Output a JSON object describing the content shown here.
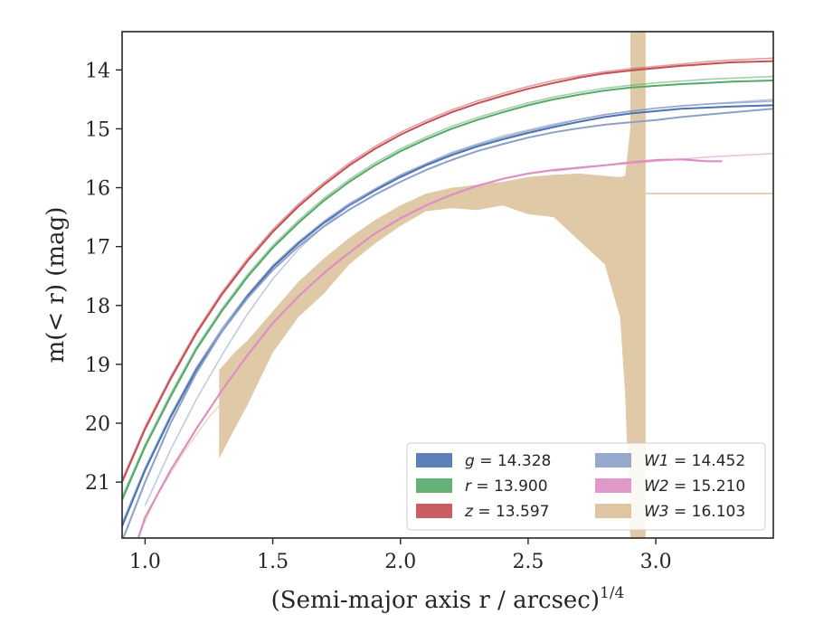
{
  "chart_data": {
    "type": "line",
    "xlabel": "(Semi-major axis r / arcsec)",
    "xlabel_sup": "1/4",
    "ylabel": "m(< r) (mag)",
    "xlim": [
      0.91,
      3.46
    ],
    "ylim": [
      21.95,
      13.35
    ],
    "y_inverted": true,
    "xticks": [
      1.0,
      1.5,
      2.0,
      2.5,
      3.0
    ],
    "xtick_labels": [
      "1.0",
      "1.5",
      "2.0",
      "2.5",
      "3.0"
    ],
    "yticks": [
      14,
      15,
      16,
      17,
      18,
      19,
      20,
      21
    ],
    "ytick_labels": [
      "14",
      "15",
      "16",
      "17",
      "18",
      "19",
      "20",
      "21"
    ],
    "grid": false,
    "legend_placement": "lower-right",
    "legend_columns": 2,
    "series": [
      {
        "name": "g",
        "legend_value": "14.328",
        "color": "#4c72b0",
        "x": [
          0.91,
          1.0,
          1.1,
          1.2,
          1.3,
          1.4,
          1.5,
          1.6,
          1.7,
          1.8,
          1.9,
          2.0,
          2.1,
          2.2,
          2.3,
          2.4,
          2.5,
          2.6,
          2.7,
          2.8,
          2.9,
          3.0,
          3.1,
          3.2,
          3.3,
          3.46
        ],
        "y": [
          21.75,
          20.8,
          19.9,
          19.1,
          18.45,
          17.85,
          17.35,
          16.95,
          16.6,
          16.3,
          16.05,
          15.82,
          15.62,
          15.45,
          15.3,
          15.18,
          15.07,
          14.97,
          14.88,
          14.8,
          14.74,
          14.7,
          14.66,
          14.64,
          14.62,
          14.6
        ],
        "alt_x": [
          0.91,
          1.0,
          1.1,
          1.2,
          1.3,
          1.4,
          1.5,
          1.6,
          1.7,
          1.8,
          1.9,
          2.0,
          2.1,
          2.2,
          2.3,
          2.4,
          2.5,
          2.6,
          2.7,
          2.8,
          2.9,
          3.0,
          3.1,
          3.2,
          3.3,
          3.46
        ],
        "alt_y": [
          21.7,
          20.76,
          19.86,
          19.06,
          18.4,
          17.82,
          17.32,
          16.92,
          16.57,
          16.27,
          16.02,
          15.79,
          15.6,
          15.42,
          15.27,
          15.15,
          15.04,
          14.94,
          14.84,
          14.76,
          14.7,
          14.65,
          14.61,
          14.58,
          14.56,
          14.53
        ]
      },
      {
        "name": "r",
        "legend_value": "13.900",
        "color": "#55a868",
        "x": [
          0.91,
          1.0,
          1.1,
          1.2,
          1.3,
          1.4,
          1.5,
          1.6,
          1.7,
          1.8,
          1.9,
          2.0,
          2.1,
          2.2,
          2.3,
          2.4,
          2.5,
          2.6,
          2.7,
          2.8,
          2.9,
          3.0,
          3.1,
          3.2,
          3.3,
          3.46
        ],
        "y": [
          21.3,
          20.4,
          19.55,
          18.75,
          18.1,
          17.52,
          17.02,
          16.6,
          16.22,
          15.9,
          15.62,
          15.38,
          15.18,
          15.0,
          14.85,
          14.72,
          14.6,
          14.5,
          14.42,
          14.35,
          14.3,
          14.27,
          14.24,
          14.22,
          14.2,
          14.18
        ],
        "alt_x": [
          0.91,
          1.0,
          1.1,
          1.2,
          1.3,
          1.4,
          1.5,
          1.6,
          1.7,
          1.8,
          1.9,
          2.0,
          2.1,
          2.2,
          2.3,
          2.4,
          2.5,
          2.6,
          2.7,
          2.8,
          2.9,
          3.0,
          3.1,
          3.2,
          3.3,
          3.46
        ],
        "alt_y": [
          21.25,
          20.36,
          19.5,
          18.71,
          18.06,
          17.48,
          16.98,
          16.56,
          16.18,
          15.86,
          15.58,
          15.34,
          15.14,
          14.96,
          14.81,
          14.68,
          14.56,
          14.46,
          14.38,
          14.31,
          14.26,
          14.22,
          14.19,
          14.16,
          14.14,
          14.11
        ]
      },
      {
        "name": "z",
        "legend_value": "13.597",
        "color": "#c44e52",
        "x": [
          0.91,
          1.0,
          1.1,
          1.2,
          1.3,
          1.4,
          1.5,
          1.6,
          1.7,
          1.8,
          1.9,
          2.0,
          2.1,
          2.2,
          2.3,
          2.4,
          2.5,
          2.6,
          2.7,
          2.8,
          2.9,
          3.0,
          3.1,
          3.2,
          3.3,
          3.46
        ],
        "y": [
          21.0,
          20.1,
          19.25,
          18.48,
          17.82,
          17.25,
          16.75,
          16.32,
          15.95,
          15.62,
          15.34,
          15.1,
          14.9,
          14.72,
          14.57,
          14.44,
          14.32,
          14.22,
          14.13,
          14.06,
          14.01,
          13.97,
          13.93,
          13.9,
          13.87,
          13.85
        ],
        "alt_x": [
          0.91,
          1.0,
          1.1,
          1.2,
          1.3,
          1.4,
          1.5,
          1.6,
          1.7,
          1.8,
          1.9,
          2.0,
          2.1,
          2.2,
          2.3,
          2.4,
          2.5,
          2.6,
          2.7,
          2.8,
          2.9,
          3.0,
          3.1,
          3.2,
          3.3,
          3.46
        ],
        "alt_y": [
          20.96,
          20.06,
          19.21,
          18.44,
          17.78,
          17.21,
          16.71,
          16.28,
          15.91,
          15.58,
          15.3,
          15.06,
          14.86,
          14.68,
          14.53,
          14.4,
          14.28,
          14.18,
          14.1,
          14.03,
          13.98,
          13.94,
          13.9,
          13.86,
          13.83,
          13.8
        ]
      },
      {
        "name": "W1",
        "legend_value": "14.452",
        "color": "#8c9fc6",
        "x": [
          0.91,
          1.0,
          1.1,
          1.2,
          1.3,
          1.4,
          1.5,
          1.6,
          1.7,
          1.8,
          1.9,
          2.0,
          2.1,
          2.2,
          2.3,
          2.4,
          2.5,
          2.6,
          2.7,
          2.8,
          2.9,
          3.0,
          3.1,
          3.2,
          3.3,
          3.46
        ],
        "y": [
          22.0,
          21.0,
          20.0,
          19.15,
          18.45,
          17.88,
          17.4,
          17.0,
          16.66,
          16.37,
          16.12,
          15.9,
          15.7,
          15.53,
          15.38,
          15.26,
          15.15,
          15.06,
          14.99,
          14.93,
          14.89,
          14.85,
          14.8,
          14.76,
          14.72,
          14.66
        ],
        "alt_x": [
          1.0,
          1.1,
          1.2,
          1.3,
          1.4,
          1.5,
          1.6,
          1.7,
          1.8,
          1.9,
          2.0,
          2.2,
          2.4,
          2.6,
          2.8,
          3.0,
          3.2,
          3.46
        ],
        "alt_y": [
          21.4,
          20.45,
          19.6,
          18.85,
          18.15,
          17.55,
          17.05,
          16.65,
          16.3,
          16.02,
          15.78,
          15.4,
          15.12,
          14.92,
          14.76,
          14.65,
          14.58,
          14.5
        ]
      },
      {
        "name": "W2",
        "legend_value": "15.210",
        "color": "#dd8fc4",
        "x": [
          0.97,
          1.0,
          1.1,
          1.2,
          1.3,
          1.4,
          1.5,
          1.6,
          1.7,
          1.8,
          1.9,
          2.0,
          2.1,
          2.2,
          2.3,
          2.4,
          2.5,
          2.6,
          2.7,
          2.8,
          2.9,
          3.0,
          3.1,
          3.2,
          3.26
        ],
        "y": [
          22.0,
          21.6,
          20.8,
          20.1,
          19.45,
          18.85,
          18.3,
          17.85,
          17.45,
          17.1,
          16.78,
          16.52,
          16.3,
          16.12,
          15.97,
          15.85,
          15.76,
          15.7,
          15.66,
          15.62,
          15.57,
          15.53,
          15.52,
          15.55,
          15.55
        ],
        "alt_x": [
          2.6,
          2.8,
          3.0,
          3.2,
          3.46
        ],
        "alt_y": [
          15.72,
          15.62,
          15.55,
          15.48,
          15.42
        ]
      },
      {
        "name": "W3",
        "legend_value": "16.103",
        "color": "#dec6a2",
        "band_x": [
          1.29,
          1.35,
          1.4,
          1.5,
          1.6,
          1.7,
          1.8,
          1.9,
          2.0,
          2.1,
          2.2,
          2.3,
          2.4,
          2.5,
          2.6,
          2.7,
          2.8,
          2.86,
          2.88,
          2.9,
          2.9,
          2.96,
          2.96
        ],
        "band_upper": [
          19.1,
          18.8,
          18.6,
          18.1,
          17.6,
          17.2,
          16.85,
          16.55,
          16.3,
          16.1,
          16.0,
          15.95,
          15.9,
          15.82,
          15.78,
          15.76,
          15.8,
          15.82,
          15.8,
          15.0,
          13.35,
          13.35,
          16.1
        ],
        "band_lower": [
          20.6,
          20.1,
          19.7,
          18.8,
          18.2,
          17.8,
          17.3,
          16.95,
          16.65,
          16.4,
          16.35,
          16.38,
          16.3,
          16.45,
          16.5,
          16.9,
          17.3,
          18.2,
          19.5,
          21.95,
          21.95,
          21.95,
          16.1
        ],
        "flat_x": [
          2.96,
          3.46
        ],
        "flat_y": [
          16.1,
          16.1
        ],
        "faint_x": [
          0.97,
          1.05,
          1.15,
          1.25,
          1.29
        ],
        "faint_y": [
          21.95,
          21.2,
          20.5,
          19.9,
          19.7
        ]
      }
    ]
  }
}
